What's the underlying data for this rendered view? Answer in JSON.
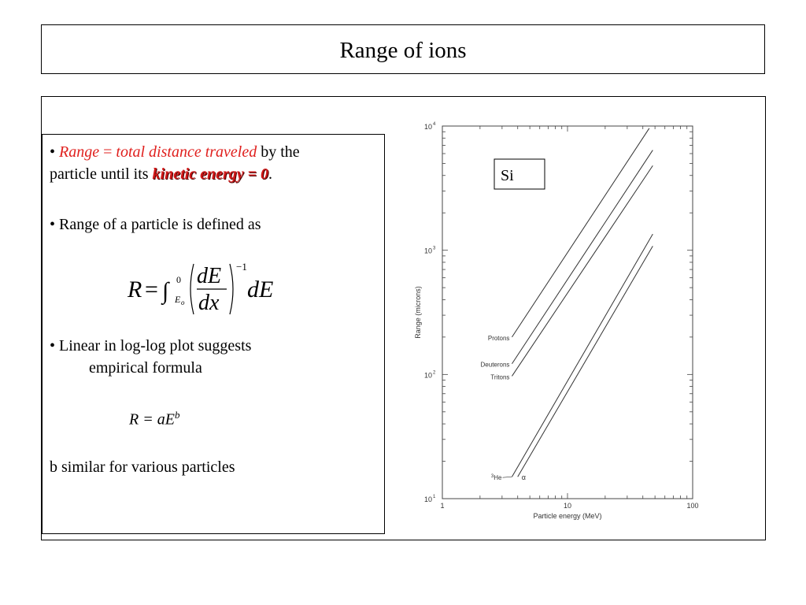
{
  "slide": {
    "title": "Range of ions",
    "bullet_symbol": "•",
    "b1_term": "Range",
    "b1_eq": " = ",
    "b1_def": "total distance traveled",
    "b1_rest": " by the",
    "b1_line2": "particle until its ",
    "b1_ke": "kinetic energy = 0",
    "b1_period": ".",
    "b2": "Range of a particle is defined as",
    "b3_line1": "Linear in log-log plot suggests",
    "b3_line2": "empirical formula",
    "rae_base": "R = aE",
    "rae_exp": "b",
    "closing": "b similar for various particles"
  },
  "formula": {
    "lhs": "R",
    "eq": "=",
    "integral": "∫",
    "upper": "0",
    "lower_var": "E",
    "lower_sub": "o",
    "num": "dE",
    "den": "dx",
    "exp": "−1",
    "tail": "dE"
  },
  "chart_data": {
    "type": "line",
    "scale": "log-log",
    "xlabel": "Particle energy (MeV)",
    "ylabel": "Range (microns)",
    "xlim": [
      1,
      100
    ],
    "ylim": [
      10,
      10000
    ],
    "x_ticks": [
      {
        "value": 1,
        "label": "1"
      },
      {
        "value": 10,
        "label": "10"
      },
      {
        "value": 100,
        "label": "100"
      }
    ],
    "y_ticks": [
      {
        "value": 10,
        "label": "10",
        "sup": "1"
      },
      {
        "value": 100,
        "label": "10",
        "sup": "2"
      },
      {
        "value": 1000,
        "label": "10",
        "sup": "3"
      },
      {
        "value": 10000,
        "label": "10",
        "sup": "4"
      }
    ],
    "inset_label": "Si",
    "series": [
      {
        "name": "Protons",
        "x": [
          3.6,
          45
        ],
        "y": [
          200,
          9600
        ]
      },
      {
        "name": "Deuterons",
        "x": [
          3.6,
          48
        ],
        "y": [
          122,
          6400
        ]
      },
      {
        "name": "Tritons",
        "x": [
          3.6,
          48
        ],
        "y": [
          97,
          4800
        ]
      },
      {
        "name": "3He",
        "name_sup": "3",
        "name_base": "He",
        "x": [
          3.6,
          48
        ],
        "y": [
          15,
          1350
        ]
      },
      {
        "name": "α",
        "x": [
          4.0,
          48
        ],
        "y": [
          15,
          1080
        ]
      }
    ],
    "grid": false
  }
}
